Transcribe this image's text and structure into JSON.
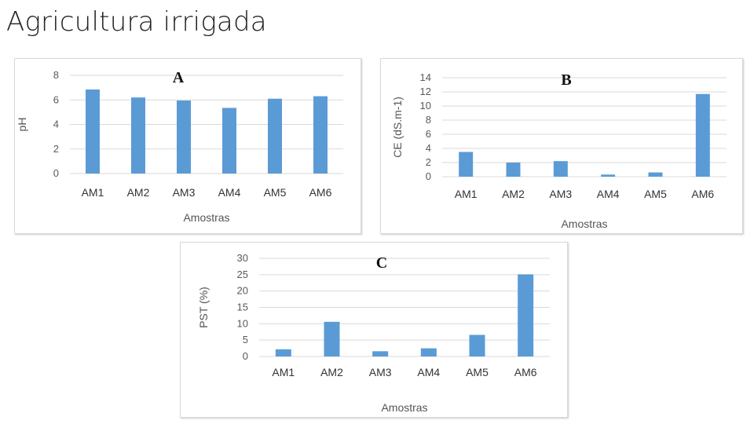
{
  "page": {
    "title": "Agricultura irrigada"
  },
  "colors": {
    "bar": "#5b9bd5",
    "grid": "#d9d9d9",
    "panel_border": "#d9d9d9"
  },
  "chart_data": [
    {
      "type": "bar",
      "panel_label": "A",
      "categories": [
        "AM1",
        "AM2",
        "AM3",
        "AM4",
        "AM5",
        "AM6"
      ],
      "values": [
        6.85,
        6.2,
        5.95,
        5.35,
        6.1,
        6.3
      ],
      "xlabel": "Amostras",
      "ylabel": "pH",
      "ylim": [
        0,
        8
      ],
      "yticks": [
        0,
        2,
        4,
        6,
        8
      ],
      "grid": true
    },
    {
      "type": "bar",
      "panel_label": "B",
      "categories": [
        "AM1",
        "AM2",
        "AM3",
        "AM4",
        "AM5",
        "AM6"
      ],
      "values": [
        3.5,
        2.0,
        2.2,
        0.3,
        0.6,
        11.7
      ],
      "xlabel": "Amostras",
      "ylabel": "CE (dS.m-1)",
      "ylim": [
        0,
        14
      ],
      "yticks": [
        0,
        2,
        4,
        6,
        8,
        10,
        12,
        14
      ],
      "grid": true
    },
    {
      "type": "bar",
      "panel_label": "C",
      "categories": [
        "AM1",
        "AM2",
        "AM3",
        "AM4",
        "AM5",
        "AM6"
      ],
      "values": [
        2.2,
        10.6,
        1.6,
        2.5,
        6.6,
        25.1
      ],
      "xlabel": "Amostras",
      "ylabel": "PST (%)",
      "ylim": [
        0,
        30
      ],
      "yticks": [
        0,
        5,
        10,
        15,
        20,
        25,
        30
      ],
      "grid": true
    }
  ]
}
